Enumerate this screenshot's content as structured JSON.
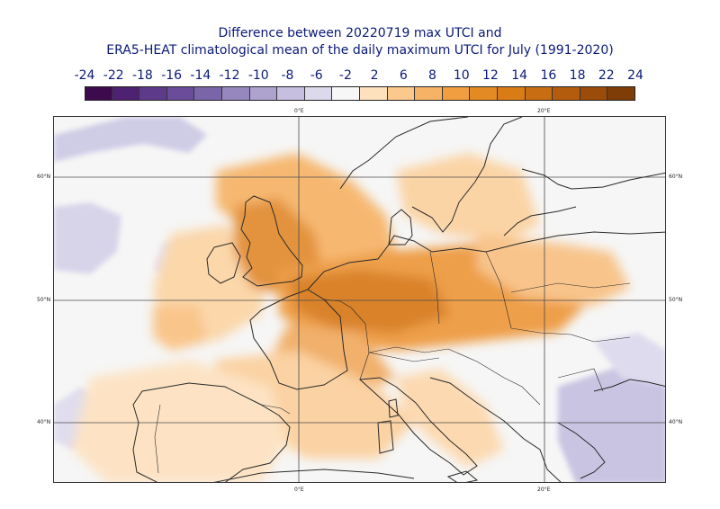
{
  "title": {
    "line1": "Difference between 20220719 max UTCI and",
    "line2": "ERA5-HEAT climatological mean of the daily maximum UTCI for July (1991-2020)"
  },
  "colorbar": {
    "ticks": [
      "-24",
      "-22",
      "-18",
      "-16",
      "-14",
      "-12",
      "-10",
      "-8",
      "-6",
      "-2",
      "2",
      "6",
      "8",
      "10",
      "12",
      "14",
      "16",
      "18",
      "22",
      "24"
    ],
    "colors": [
      "#3d0a4d",
      "#4e2172",
      "#5e3a8a",
      "#6b4c9a",
      "#7a65a8",
      "#9688bf",
      "#aea3cf",
      "#c6bfdf",
      "#dcd9ec",
      "#f7f7f7",
      "#fde0bc",
      "#fbc98c",
      "#f6b366",
      "#f09e3f",
      "#e38a22",
      "#d97c16",
      "#c86d12",
      "#b35c0d",
      "#9c4c09",
      "#7e3c06"
    ]
  },
  "map": {
    "lon_labels_top": [
      "0°E",
      "20°E"
    ],
    "lon_labels_bottom": [
      "0°E",
      "20°E"
    ],
    "lat_labels_left": [
      "60°N",
      "50°N",
      "40°N"
    ],
    "lat_labels_right": [
      "60°N",
      "50°N",
      "40°N"
    ],
    "background_color": "#f6f6f6",
    "coast_color": "#2a2a2a"
  }
}
